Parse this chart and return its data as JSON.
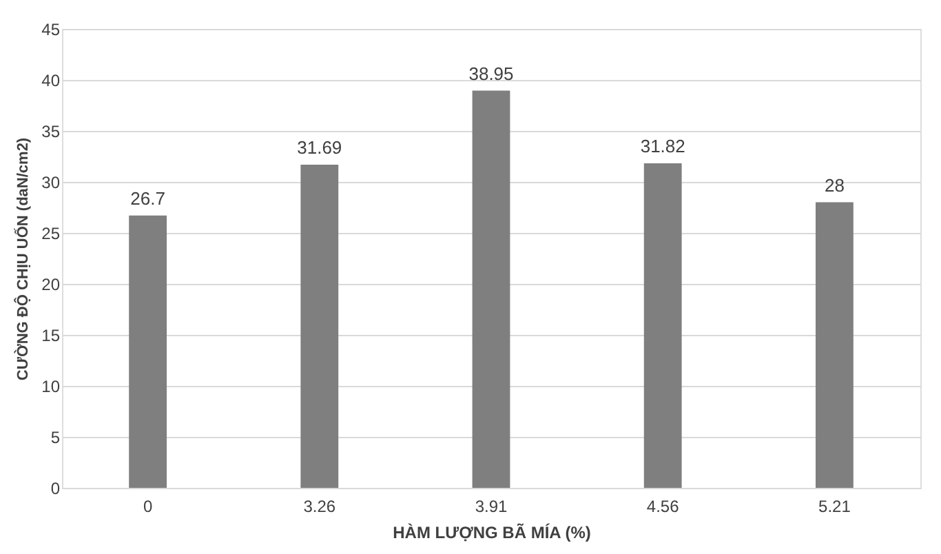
{
  "chart_data": {
    "type": "bar",
    "xlabel": "HÀM LƯỢNG BÃ MÍA (%)",
    "ylabel": "CƯỜNG ĐỘ CHỊU UỐN (daN/cm2)",
    "categories": [
      "0",
      "3.26",
      "3.91",
      "4.56",
      "5.21"
    ],
    "values": [
      26.7,
      31.69,
      38.95,
      31.82,
      28
    ],
    "color": "#7f7f7f",
    "ylim": [
      0,
      45
    ],
    "yticks": [
      0,
      5,
      10,
      15,
      20,
      25,
      30,
      35,
      40,
      45
    ],
    "grid": "y",
    "data_labels": true
  }
}
